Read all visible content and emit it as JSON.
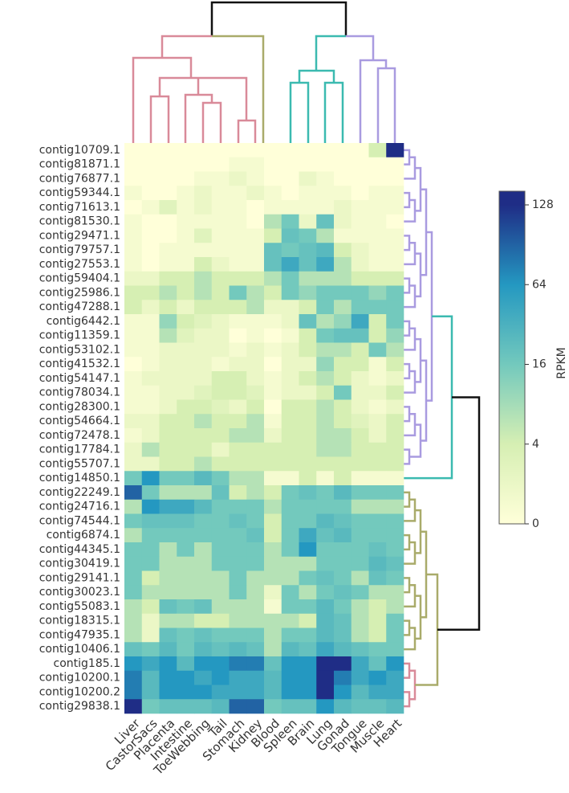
{
  "chart_data": {
    "type": "heatmap",
    "columns": [
      "Liver",
      "CastorSacs",
      "Placenta",
      "Intestine",
      "ToeWebbing",
      "Tail",
      "Stomach",
      "Kidney",
      "Blood",
      "Spleen",
      "Brain",
      "Lung",
      "Gonad",
      "Tongue",
      "Muscle",
      "Heart"
    ],
    "rows": [
      "contig10709.1",
      "contig81871.1",
      "contig76877.1",
      "contig59344.1",
      "contig71613.1",
      "contig81530.1",
      "contig29471.1",
      "contig79757.1",
      "contig27553.1",
      "contig59404.1",
      "contig25986.1",
      "contig47288.1",
      "contig6442.1",
      "contig11359.1",
      "contig53102.1",
      "contig41532.1",
      "contig54147.1",
      "contig78034.1",
      "contig28300.1",
      "contig54664.1",
      "contig72478.1",
      "contig17784.1",
      "contig55707.1",
      "contig14850.1",
      "contig22249.1",
      "contig24716.1",
      "contig74544.1",
      "contig6874.1",
      "contig44345.1",
      "contig30419.1",
      "contig29141.1",
      "contig30023.1",
      "contig55083.1",
      "contig18315.1",
      "contig47935.1",
      "contig10406.1",
      "contig185.1",
      "contig10200.1",
      "contig10200.2",
      "contig29838.1"
    ],
    "values": [
      [
        0,
        0,
        0,
        0,
        0,
        0,
        0,
        0,
        0,
        0,
        0,
        0,
        0,
        0,
        4,
        128
      ],
      [
        0,
        0,
        0,
        0,
        0,
        0,
        1,
        1,
        0,
        0,
        0,
        0,
        0,
        0,
        0,
        0
      ],
      [
        0,
        0,
        0,
        0,
        1,
        1,
        2,
        1,
        0,
        0,
        2,
        1,
        0,
        0,
        0,
        0
      ],
      [
        1,
        0,
        0,
        1,
        2,
        1,
        1,
        2,
        1,
        0,
        1,
        1,
        1,
        0,
        1,
        1
      ],
      [
        0,
        1,
        3,
        1,
        2,
        1,
        1,
        0,
        1,
        1,
        1,
        1,
        2,
        1,
        1,
        1
      ],
      [
        1,
        0,
        0,
        1,
        1,
        1,
        1,
        0,
        8,
        16,
        2,
        24,
        2,
        1,
        1,
        0
      ],
      [
        1,
        0,
        0,
        1,
        3,
        1,
        1,
        1,
        4,
        24,
        16,
        8,
        1,
        1,
        1,
        1
      ],
      [
        1,
        0,
        1,
        1,
        1,
        1,
        1,
        1,
        24,
        16,
        24,
        32,
        4,
        2,
        1,
        1
      ],
      [
        1,
        0,
        1,
        1,
        4,
        2,
        1,
        1,
        24,
        48,
        24,
        48,
        8,
        2,
        1,
        1
      ],
      [
        2,
        2,
        4,
        4,
        8,
        4,
        4,
        4,
        8,
        16,
        8,
        8,
        8,
        4,
        4,
        4
      ],
      [
        4,
        4,
        8,
        4,
        8,
        4,
        16,
        8,
        4,
        16,
        12,
        16,
        16,
        16,
        12,
        16
      ],
      [
        4,
        2,
        4,
        2,
        4,
        4,
        4,
        8,
        2,
        2,
        4,
        16,
        8,
        16,
        16,
        16
      ],
      [
        1,
        1,
        12,
        4,
        3,
        2,
        1,
        1,
        1,
        2,
        24,
        8,
        12,
        48,
        4,
        16
      ],
      [
        1,
        1,
        8,
        3,
        2,
        2,
        0,
        1,
        0,
        1,
        4,
        16,
        24,
        24,
        4,
        12
      ],
      [
        1,
        1,
        2,
        2,
        2,
        2,
        1,
        2,
        1,
        2,
        4,
        8,
        8,
        4,
        16,
        8
      ],
      [
        0,
        1,
        2,
        2,
        2,
        1,
        2,
        2,
        0,
        2,
        2,
        12,
        4,
        4,
        1,
        4
      ],
      [
        1,
        2,
        2,
        2,
        2,
        4,
        4,
        2,
        1,
        2,
        4,
        8,
        4,
        2,
        1,
        2
      ],
      [
        1,
        1,
        2,
        2,
        3,
        4,
        4,
        3,
        1,
        2,
        2,
        4,
        16,
        2,
        2,
        4
      ],
      [
        1,
        1,
        2,
        4,
        4,
        3,
        2,
        4,
        0,
        4,
        4,
        8,
        4,
        2,
        1,
        2
      ],
      [
        2,
        2,
        4,
        4,
        8,
        4,
        4,
        8,
        1,
        4,
        4,
        8,
        4,
        3,
        2,
        4
      ],
      [
        1,
        2,
        4,
        4,
        4,
        4,
        8,
        8,
        2,
        4,
        4,
        8,
        8,
        4,
        2,
        4
      ],
      [
        2,
        8,
        4,
        4,
        4,
        2,
        4,
        4,
        4,
        4,
        4,
        8,
        8,
        4,
        4,
        4
      ],
      [
        2,
        2,
        4,
        4,
        8,
        4,
        4,
        4,
        4,
        4,
        4,
        4,
        4,
        4,
        4,
        4
      ],
      [
        16,
        64,
        16,
        16,
        32,
        16,
        8,
        8,
        1,
        1,
        4,
        1,
        4,
        1,
        1,
        1
      ],
      [
        96,
        16,
        8,
        8,
        8,
        24,
        4,
        8,
        4,
        16,
        24,
        16,
        32,
        16,
        16,
        16
      ],
      [
        8,
        64,
        48,
        48,
        32,
        16,
        16,
        16,
        8,
        16,
        16,
        16,
        16,
        8,
        8,
        8
      ],
      [
        16,
        24,
        24,
        24,
        16,
        16,
        24,
        16,
        4,
        16,
        16,
        32,
        24,
        16,
        16,
        16
      ],
      [
        8,
        16,
        16,
        16,
        16,
        16,
        16,
        24,
        4,
        16,
        48,
        24,
        32,
        16,
        16,
        16
      ],
      [
        16,
        16,
        8,
        16,
        8,
        16,
        16,
        16,
        8,
        16,
        64,
        16,
        16,
        16,
        24,
        16
      ],
      [
        16,
        16,
        8,
        8,
        8,
        16,
        16,
        16,
        8,
        8,
        8,
        16,
        16,
        16,
        32,
        24
      ],
      [
        16,
        4,
        8,
        8,
        8,
        8,
        16,
        8,
        8,
        8,
        16,
        24,
        16,
        8,
        24,
        16
      ],
      [
        16,
        8,
        8,
        8,
        8,
        8,
        16,
        8,
        2,
        16,
        8,
        16,
        24,
        16,
        8,
        8
      ],
      [
        8,
        4,
        24,
        16,
        24,
        8,
        8,
        8,
        1,
        16,
        16,
        32,
        16,
        8,
        4,
        8
      ],
      [
        8,
        2,
        8,
        8,
        4,
        4,
        8,
        8,
        8,
        8,
        4,
        32,
        24,
        8,
        4,
        16
      ],
      [
        8,
        2,
        24,
        16,
        24,
        16,
        16,
        16,
        8,
        16,
        16,
        32,
        24,
        8,
        4,
        16
      ],
      [
        24,
        16,
        32,
        16,
        32,
        24,
        32,
        24,
        8,
        32,
        24,
        48,
        32,
        24,
        16,
        16
      ],
      [
        64,
        48,
        64,
        32,
        64,
        64,
        80,
        80,
        24,
        64,
        64,
        128,
        128,
        48,
        24,
        64
      ],
      [
        80,
        32,
        64,
        64,
        48,
        64,
        48,
        48,
        32,
        64,
        64,
        128,
        80,
        48,
        64,
        48
      ],
      [
        80,
        32,
        64,
        64,
        64,
        48,
        48,
        48,
        32,
        64,
        64,
        128,
        64,
        32,
        48,
        48
      ],
      [
        128,
        16,
        24,
        24,
        24,
        32,
        96,
        96,
        16,
        24,
        24,
        64,
        32,
        24,
        24,
        32
      ]
    ],
    "colorbar_label": "RPKM",
    "cticks": [
      0,
      4,
      16,
      64,
      128
    ],
    "colors": [
      "#ffffd9",
      "#d6efb3",
      "#73c9bd",
      "#2498c1",
      "#1f2d86"
    ]
  }
}
